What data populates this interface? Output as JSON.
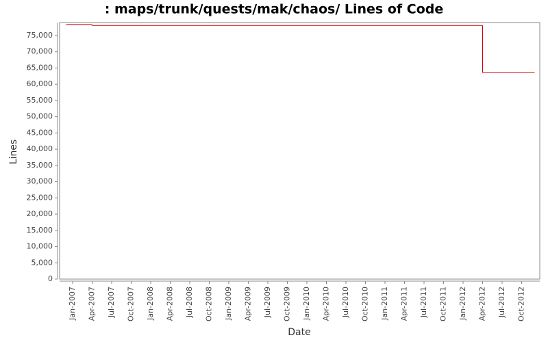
{
  "chart_data": {
    "type": "line",
    "title": ": maps/trunk/quests/mak/chaos/ Lines of Code",
    "x_label": "Date",
    "y_label": "Lines",
    "x": [
      "Dec-2006",
      "Apr-2007",
      "Apr-2012",
      "Dec-2012"
    ],
    "values": [
      78400,
      78100,
      63600,
      63600
    ],
    "step": true,
    "color": "#cc0000",
    "xlim": [
      "Nov-2006",
      "Dec-2012"
    ],
    "xticks": [
      "Jan-2007",
      "Apr-2007",
      "Jul-2007",
      "Oct-2007",
      "Jan-2008",
      "Apr-2008",
      "Jul-2008",
      "Oct-2008",
      "Jan-2009",
      "Apr-2009",
      "Jul-2009",
      "Oct-2009",
      "Jan-2010",
      "Apr-2010",
      "Jul-2010",
      "Oct-2010",
      "Jan-2011",
      "Apr-2011",
      "Jul-2011",
      "Oct-2011",
      "Jan-2012",
      "Apr-2012",
      "Jul-2012",
      "Oct-2012"
    ],
    "ylim": [
      0,
      79000
    ],
    "yticks": [
      0,
      {
        "value": 5000,
        "label": "5,000"
      },
      {
        "value": 10000,
        "label": "10,000"
      },
      {
        "value": 15000,
        "label": "15,000"
      },
      {
        "value": 20000,
        "label": "20,000"
      },
      {
        "value": 25000,
        "label": "25,000"
      },
      {
        "value": 30000,
        "label": "30,000"
      },
      {
        "value": 35000,
        "label": "35,000"
      },
      {
        "value": 40000,
        "label": "40,000"
      },
      {
        "value": 45000,
        "label": "45,000"
      },
      {
        "value": 50000,
        "label": "50,000"
      },
      {
        "value": 55000,
        "label": "55,000"
      },
      {
        "value": 60000,
        "label": "60,000"
      },
      {
        "value": 65000,
        "label": "65,000"
      },
      {
        "value": 70000,
        "label": "70,000"
      },
      {
        "value": 75000,
        "label": "75,000"
      }
    ],
    "grid": false
  }
}
